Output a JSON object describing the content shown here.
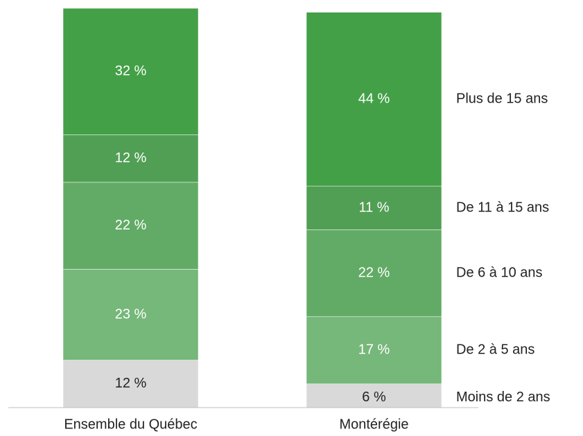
{
  "chart_data": {
    "type": "stacked_bar",
    "categories": [
      "Ensemble du Québec",
      "Montérégie"
    ],
    "series": [
      {
        "name": "Moins de 2 ans",
        "color": "#d9d9d9",
        "label_color": "#222222",
        "values": [
          12,
          6
        ],
        "value_labels": [
          "12 %",
          "6 %"
        ]
      },
      {
        "name": "De 2 à 5 ans",
        "color": "#76b77a",
        "label_color": "#ffffff",
        "values": [
          23,
          17
        ],
        "value_labels": [
          "23 %",
          "17 %"
        ]
      },
      {
        "name": "De 6 à 10 ans",
        "color": "#62ab66",
        "label_color": "#ffffff",
        "values": [
          22,
          22
        ],
        "value_labels": [
          "22 %",
          "22 %"
        ]
      },
      {
        "name": "De 11 à 15 ans",
        "color": "#519f55",
        "label_color": "#ffffff",
        "values": [
          12,
          11
        ],
        "value_labels": [
          "12 %",
          "11 %"
        ]
      },
      {
        "name": "Plus de 15 ans",
        "color": "#43a047",
        "label_color": "#ffffff",
        "values": [
          32,
          44
        ],
        "value_labels": [
          "32 %",
          "44 %"
        ]
      }
    ]
  }
}
